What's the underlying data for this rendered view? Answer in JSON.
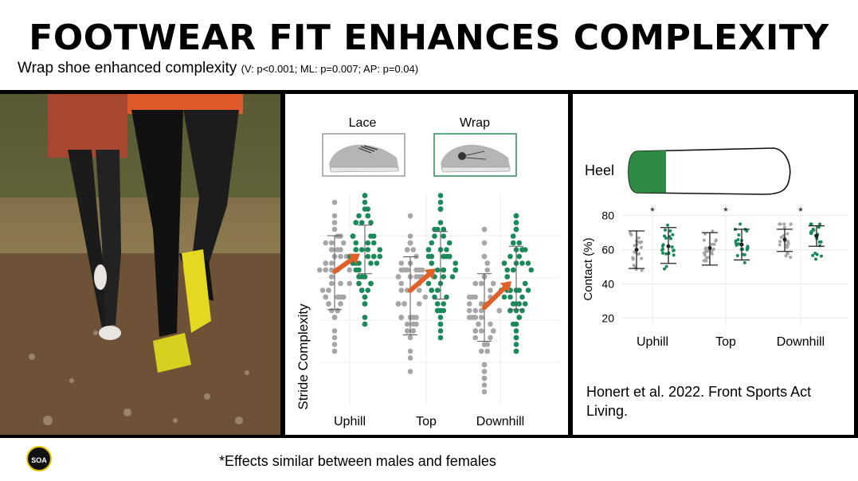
{
  "header": {
    "title": "FOOTWEAR FIT ENHANCES COMPLEXITY",
    "subtitle": "Wrap shoe enhanced complexity",
    "subtitle_stats": "(V: p<0.001; ML: p=0.007; AP: p=0.04)"
  },
  "footnote": "*Effects similar between males and females",
  "logo": "SOA",
  "citation": "Honert et al. 2022. Front Sports Act Living.",
  "colors": {
    "lace": "#a6a6a6",
    "wrap": "#1a8a5a",
    "arrow": "#e0602a",
    "heel_fill": "#2e8b45"
  },
  "shoes": {
    "lace_label": "Lace",
    "wrap_label": "Wrap"
  },
  "chart_data": [
    {
      "type": "scatter",
      "title": "",
      "ylabel": "Stride Complexity",
      "xlabel": "",
      "categories": [
        "Uphill",
        "Top",
        "Downhill"
      ],
      "series": [
        {
          "name": "Lace",
          "summary": [
            {
              "mean": 0.63,
              "sd_low": 0.45,
              "sd_high": 0.8
            },
            {
              "mean": 0.54,
              "sd_low": 0.33,
              "sd_high": 0.7
            },
            {
              "mean": 0.46,
              "sd_low": 0.3,
              "sd_high": 0.62
            }
          ]
        },
        {
          "name": "Wrap",
          "summary": [
            {
              "mean": 0.73,
              "sd_low": 0.62,
              "sd_high": 0.85
            },
            {
              "mean": 0.66,
              "sd_low": 0.5,
              "sd_high": 0.82
            },
            {
              "mean": 0.6,
              "sd_low": 0.45,
              "sd_high": 0.75
            }
          ]
        }
      ],
      "ylim": [
        0,
        1
      ],
      "grid": true,
      "annotations": "arrows from Lace mean to Wrap mean in each condition"
    },
    {
      "type": "scatter",
      "title": "",
      "region_label": "Heel",
      "ylabel": "Contact (%)",
      "xlabel": "",
      "categories": [
        "Uphill",
        "Top",
        "Downhill"
      ],
      "yticks": [
        20,
        40,
        60,
        80
      ],
      "ylim": [
        15,
        85
      ],
      "grid": true,
      "significance": [
        "*",
        "*",
        "*"
      ],
      "series": [
        {
          "name": "Lace",
          "means": [
            60,
            61,
            66
          ],
          "sd_low": [
            49,
            51,
            59
          ],
          "sd_high": [
            71,
            70,
            72
          ]
        },
        {
          "name": "Wrap",
          "means": [
            62,
            63,
            68
          ],
          "sd_low": [
            52,
            54,
            62
          ],
          "sd_high": [
            73,
            72,
            74
          ]
        }
      ]
    }
  ]
}
